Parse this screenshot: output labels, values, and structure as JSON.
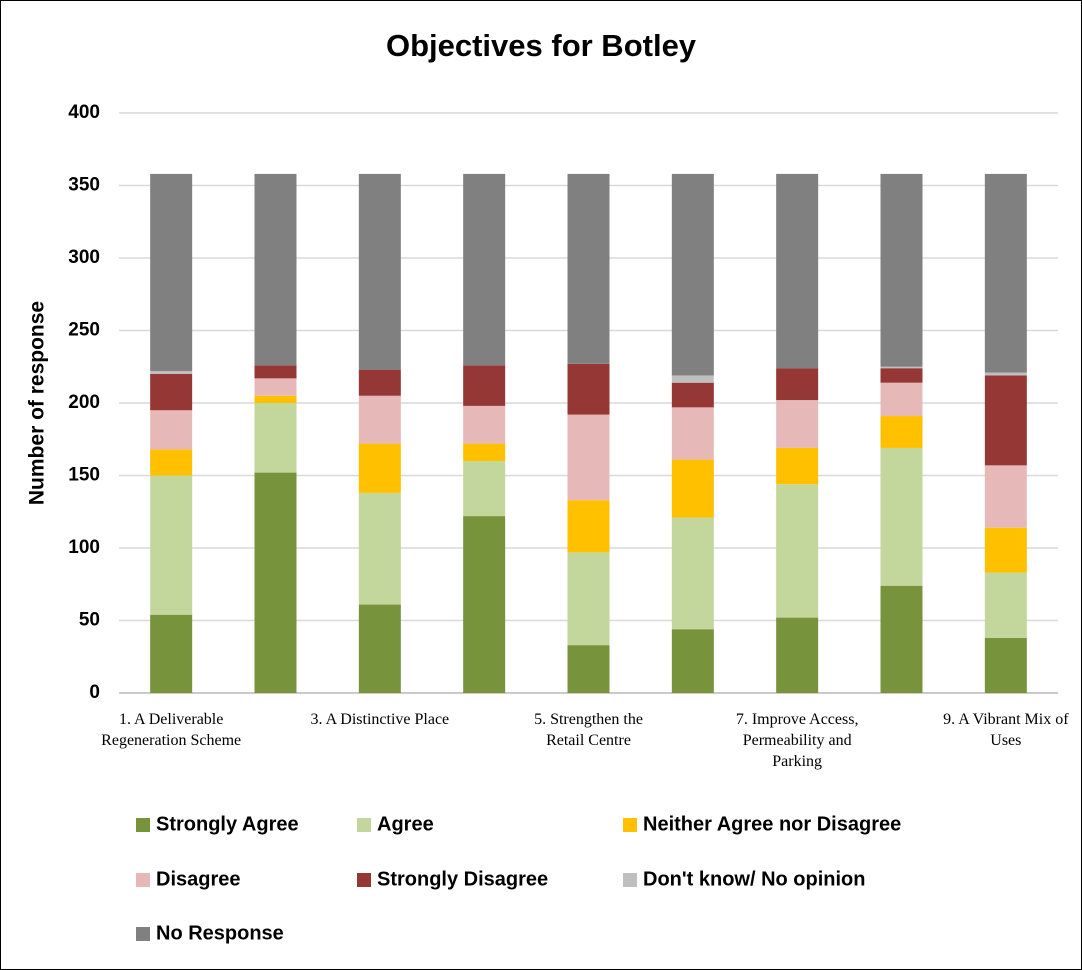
{
  "chart_data": {
    "type": "bar",
    "stacked": true,
    "title": "Objectives for Botley",
    "y_label": "Number of response",
    "categories": [
      "1. A Deliverable Regeneration Scheme",
      null,
      "3. A Distinctive Place",
      null,
      "5. Strengthen the Retail Centre",
      null,
      "7. Improve Access, Permeability and Parking",
      null,
      "9. A Vibrant Mix of Uses"
    ],
    "series": [
      {
        "name": "Strongly Agree",
        "color": "#77933c",
        "values": [
          54,
          152,
          61,
          122,
          33,
          44,
          52,
          74,
          38
        ]
      },
      {
        "name": "Agree",
        "color": "#c3d69b",
        "values": [
          96,
          48,
          77,
          38,
          64,
          77,
          92,
          95,
          45
        ]
      },
      {
        "name": "Neither Agree nor Disagree",
        "color": "#ffc000",
        "values": [
          18,
          5,
          34,
          12,
          36,
          40,
          25,
          22,
          31
        ]
      },
      {
        "name": "Disagree",
        "color": "#e6b9b8",
        "values": [
          27,
          12,
          33,
          26,
          59,
          36,
          33,
          23,
          43
        ]
      },
      {
        "name": "Strongly Disagree",
        "color": "#953735",
        "values": [
          25,
          9,
          18,
          28,
          35,
          17,
          22,
          10,
          62
        ]
      },
      {
        "name": "Don't know/ No opinion",
        "color": "#bfbfbf",
        "values": [
          2,
          0,
          0,
          0,
          0,
          5,
          0,
          1,
          2
        ]
      },
      {
        "name": "No Response",
        "color": "#808080",
        "values": [
          136,
          132,
          135,
          132,
          131,
          139,
          134,
          133,
          137
        ]
      }
    ],
    "ylim": [
      0,
      400
    ],
    "yticks": [
      0,
      50,
      100,
      150,
      200,
      250,
      300,
      350,
      400
    ],
    "grid": true
  }
}
